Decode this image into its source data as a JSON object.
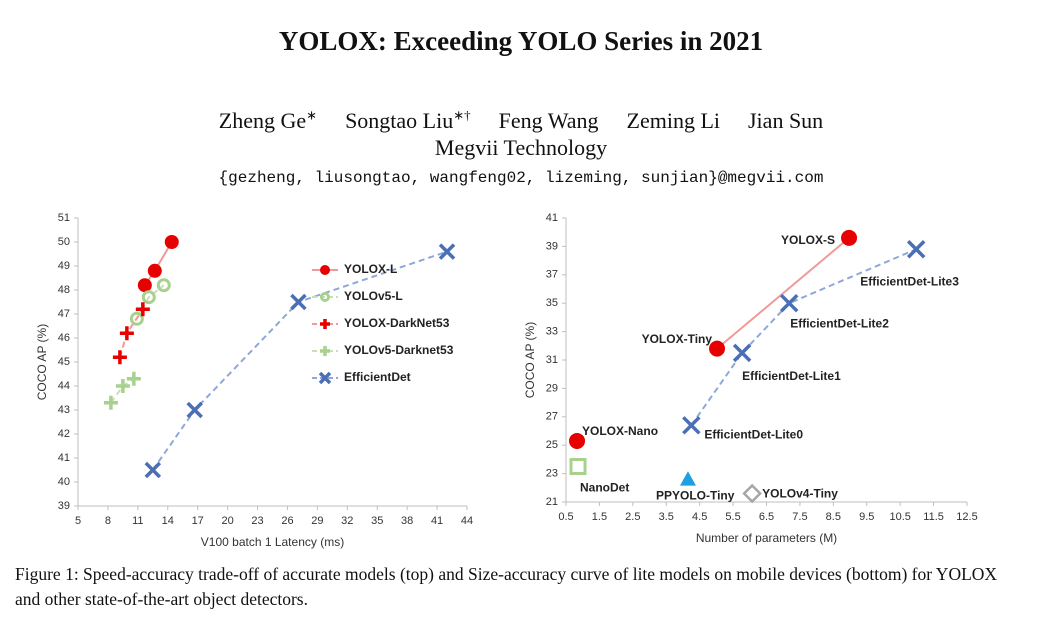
{
  "paper": {
    "title": "YOLOX: Exceeding YOLO Series in 2021",
    "authors": [
      {
        "name": "Zheng Ge",
        "mark": "∗"
      },
      {
        "name": "Songtao Liu",
        "mark": "∗†"
      },
      {
        "name": "Feng Wang"
      },
      {
        "name": "Zeming Li"
      },
      {
        "name": "Jian Sun"
      }
    ],
    "affiliation": "Megvii Technology",
    "emails": "{gezheng, liusongtao, wangfeng02, lizeming, sunjian}@megvii.com",
    "caption": "Figure 1: Speed-accuracy trade-off of accurate models (top) and Size-accuracy curve of lite models on mobile devices (bottom) for YOLOX and other state-of-the-art object detectors."
  },
  "chart_data": [
    {
      "type": "scatter",
      "x_label": "V100 batch 1 Latency (ms)",
      "y_label": "COCO AP (%)",
      "xlim": [
        5,
        44
      ],
      "xticks": [
        5,
        8,
        11,
        14,
        17,
        20,
        23,
        26,
        29,
        32,
        35,
        38,
        41,
        44
      ],
      "ylim": [
        39,
        51
      ],
      "yticks": [
        39,
        40,
        41,
        42,
        43,
        44,
        45,
        46,
        47,
        48,
        49,
        50,
        51
      ],
      "legend": "lower right",
      "series": [
        {
          "name": "YOLOX-L",
          "color": "#e60000",
          "line_color": "#f09a9a",
          "line_style": "solid",
          "marker": "circle",
          "x": [
            11.7,
            12.7,
            14.4
          ],
          "y": [
            48.2,
            48.8,
            50.0
          ]
        },
        {
          "name": "YOLOv5-L",
          "color": "#a9d18e",
          "line_color": "#c6e0b4",
          "line_style": "dashed",
          "marker": "open-circle",
          "x": [
            10.9,
            12.1,
            13.6
          ],
          "y": [
            46.8,
            47.7,
            48.2
          ]
        },
        {
          "name": "YOLOX-DarkNet53",
          "color": "#e60000",
          "line_color": "#f09a9a",
          "line_style": "dashed",
          "marker": "plus",
          "x": [
            9.2,
            9.9,
            11.5
          ],
          "y": [
            45.2,
            46.2,
            47.2
          ]
        },
        {
          "name": "YOLOv5-Darknet53",
          "color": "#a9d18e",
          "line_color": "#c6e0b4",
          "line_style": "dashed",
          "marker": "plus",
          "x": [
            8.3,
            9.5,
            10.6
          ],
          "y": [
            43.3,
            44.0,
            44.3
          ]
        },
        {
          "name": "EfficientDet",
          "color": "#4a6fb5",
          "line_color": "#8fa8d8",
          "line_style": "dashed",
          "marker": "cross",
          "x": [
            12.5,
            16.7,
            27.1,
            42.0
          ],
          "y": [
            40.5,
            43.0,
            47.5,
            49.6
          ]
        }
      ]
    },
    {
      "type": "scatter",
      "x_label": "Number of parameters (M)",
      "y_label": "COCO AP (%)",
      "xlim": [
        0.5,
        12.5
      ],
      "xticks": [
        0.5,
        1.5,
        2.5,
        3.5,
        4.5,
        5.5,
        6.5,
        7.5,
        8.5,
        9.5,
        10.5,
        11.5,
        12.5
      ],
      "ylim": [
        21,
        41
      ],
      "yticks": [
        21,
        23,
        25,
        27,
        29,
        31,
        33,
        35,
        37,
        39,
        41
      ],
      "series": [
        {
          "color": "#e60000",
          "marker": "circle",
          "x": [
            0.83
          ],
          "y": [
            25.3
          ],
          "labels": [
            "YOLOX-Nano"
          ]
        },
        {
          "color": "#e60000",
          "line_color": "#f09a9a",
          "line_style": "solid",
          "marker": "circle",
          "x": [
            5.02,
            8.97
          ],
          "y": [
            31.8,
            39.6
          ],
          "labels": [
            "YOLOX-Tiny",
            "YOLOX-S"
          ]
        },
        {
          "color": "#4a6fb5",
          "line_color": "#8fa8d8",
          "line_style": "dashed",
          "marker": "cross",
          "x": [
            4.25,
            5.77,
            7.18,
            10.98
          ],
          "y": [
            26.4,
            31.5,
            35.0,
            38.8
          ],
          "labels": [
            "EfficientDet-Lite0",
            "EfficientDet-Lite1",
            "EfficientDet-Lite2",
            "EfficientDet-Lite3"
          ]
        },
        {
          "color": "#a9d18e",
          "marker": "open-square",
          "x": [
            0.86
          ],
          "y": [
            23.5
          ],
          "labels": [
            "NanoDet"
          ]
        },
        {
          "color": "#1ea0e0",
          "marker": "triangle",
          "x": [
            4.15
          ],
          "y": [
            22.6
          ],
          "labels": [
            "PPYOLO-Tiny"
          ]
        },
        {
          "color": "#a6a6a6",
          "marker": "open-diamond",
          "x": [
            6.07
          ],
          "y": [
            21.6
          ],
          "labels": [
            "YOLOv4-Tiny"
          ]
        }
      ]
    }
  ]
}
